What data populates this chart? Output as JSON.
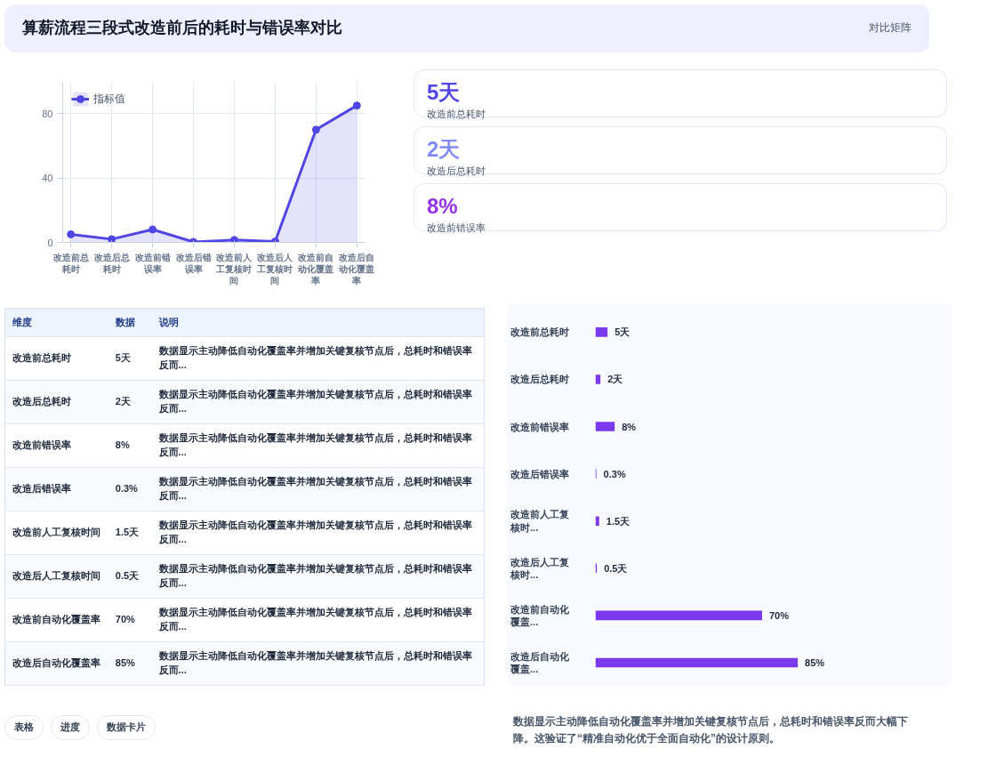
{
  "chart_data": [
    {
      "type": "area",
      "title": "算薪流程三段式改造前后的耗时与错误率对比",
      "annotations": [
        "对比矩阵"
      ],
      "categories": [
        "改造前总耗时",
        "改造后总耗时",
        "改造前错误率",
        "改造后错误率",
        "改造前人工复核时间",
        "改造后人工复核时间",
        "改造前自动化覆盖率",
        "改造后自动化覆盖率"
      ],
      "series": [
        {
          "name": "指标值",
          "color": "#4f46e5",
          "values": [
            5,
            2,
            8,
            0.3,
            1.5,
            0.5,
            70,
            85
          ]
        }
      ],
      "ylim": [
        0,
        100
      ],
      "yticks": [
        0,
        40,
        80
      ],
      "grid": true,
      "legend": "top left",
      "marker": "circle",
      "line_style": "solid"
    },
    {
      "type": "other",
      "categories": [
        "改造前总耗时",
        "改造后总耗时",
        "改造前错误率"
      ],
      "value_labels": [
        "5天",
        "2天",
        "8%"
      ]
    },
    {
      "type": "other",
      "annotations": [
        "维度",
        "数据",
        "说明",
        "改造前总耗时",
        "5天",
        "数据显示主动降低自动化覆盖率并增加关键复核节点后，总耗时和错误率反而...",
        "改造后总耗时",
        "2天",
        "数据显示主动降低自动化覆盖率并增加关键复核节点后，总耗时和错误率反而...",
        "改造前错误率",
        "8%",
        "数据显示主动降低自动化覆盖率并增加关键复核节点后，总耗时和错误率反而...",
        "改造后错误率",
        "0.3%",
        "数据显示主动降低自动化覆盖率并增加关键复核节点后，总耗时和错误率反而...",
        "改造前人工复核时间",
        "1.5天",
        "数据显示主动降低自动化覆盖率并增加关键复核节点后，总耗时和错误率反而...",
        "改造后人工复核时间",
        "0.5天",
        "数据显示主动降低自动化覆盖率并增加关键复核节点后，总耗时和错误率反而...",
        "改造前自动化覆盖率",
        "70%",
        "数据显示主动降低自动化覆盖率并增加关键复核节点后，总耗时和错误率反而...",
        "改造后自动化覆盖率",
        "85%",
        "数据显示主动降低自动化覆盖率并增加关键复核节点后，总耗时和错误率反而..."
      ]
    },
    {
      "type": "bar",
      "orientation": "horizontal",
      "categories": [
        "改造前总耗时",
        "改造后总耗时",
        "改造前错误率",
        "改造后错误率",
        "改造前人工复核时...",
        "改造后人工复核时...",
        "改造前自动化覆盖...",
        "改造后自动化覆盖..."
      ],
      "values": [
        5,
        2,
        8,
        0.3,
        1.5,
        0.5,
        70,
        85
      ],
      "color": "#7c3aed",
      "value_labels": [
        "5天",
        "2天",
        "8%",
        "0.3%",
        "1.5天",
        "0.5天",
        "70%",
        "85%"
      ],
      "annotations": [
        "数据显示主动降低自动化覆盖率并增加关键复核节点后，总耗时和错误率反而大幅下降。这验证了“精准自动化优于全面自动化”的设计原则。"
      ]
    },
    {
      "type": "other",
      "annotations": [
        "表格",
        "进度",
        "数据卡片"
      ]
    }
  ]
}
